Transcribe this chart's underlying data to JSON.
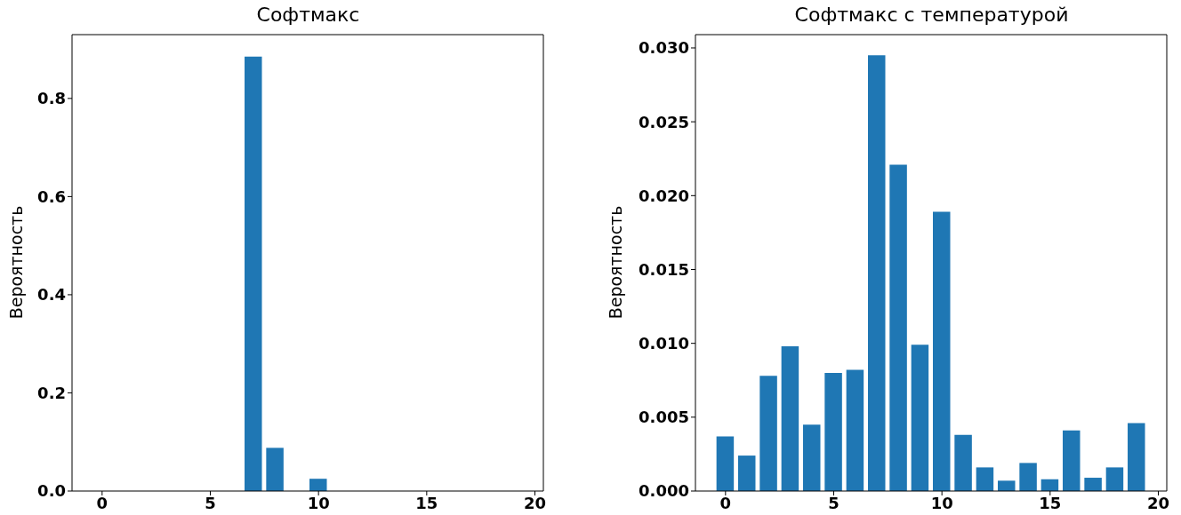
{
  "chart_data": [
    {
      "type": "bar",
      "title": "Софтмакс",
      "ylabel": "Вероятность",
      "x": [
        0,
        1,
        2,
        3,
        4,
        5,
        6,
        7,
        8,
        9,
        10,
        11,
        12,
        13,
        14,
        15,
        16,
        17,
        18,
        19
      ],
      "values": [
        0,
        0,
        0,
        0,
        0,
        0,
        0,
        0.885,
        0.088,
        0,
        0.025,
        0,
        0,
        0,
        0,
        0,
        0,
        0,
        0,
        0
      ],
      "color": "#1f77b4",
      "xlim": [
        -1.39,
        20.39
      ],
      "xticks": [
        0,
        5,
        10,
        15,
        20
      ],
      "ylim": [
        0,
        0.93
      ],
      "yticks": [
        {
          "value": 0,
          "label": "0.0"
        },
        {
          "value": 0.2,
          "label": "0.2"
        },
        {
          "value": 0.4,
          "label": "0.4"
        },
        {
          "value": 0.6,
          "label": "0.6"
        },
        {
          "value": 0.8,
          "label": "0.8"
        }
      ]
    },
    {
      "type": "bar",
      "title": "Софтмакс с температурой",
      "ylabel": "Вероятность",
      "x": [
        0,
        1,
        2,
        3,
        4,
        5,
        6,
        7,
        8,
        9,
        10,
        11,
        12,
        13,
        14,
        15,
        16,
        17,
        18,
        19
      ],
      "values": [
        0.0037,
        0.0024,
        0.0078,
        0.0098,
        0.0045,
        0.008,
        0.0082,
        0.0295,
        0.0221,
        0.0099,
        0.0189,
        0.0038,
        0.0016,
        0.0007,
        0.0019,
        0.0008,
        0.0041,
        0.0009,
        0.0016,
        0.0046
      ],
      "color": "#1f77b4",
      "xlim": [
        -1.39,
        20.39
      ],
      "xticks": [
        0,
        5,
        10,
        15,
        20
      ],
      "ylim": [
        0,
        0.0309
      ],
      "yticks": [
        {
          "value": 0,
          "label": "0.000"
        },
        {
          "value": 0.005,
          "label": "0.005"
        },
        {
          "value": 0.01,
          "label": "0.010"
        },
        {
          "value": 0.015,
          "label": "0.015"
        },
        {
          "value": 0.02,
          "label": "0.020"
        },
        {
          "value": 0.025,
          "label": "0.025"
        },
        {
          "value": 0.03,
          "label": "0.030"
        }
      ]
    }
  ]
}
